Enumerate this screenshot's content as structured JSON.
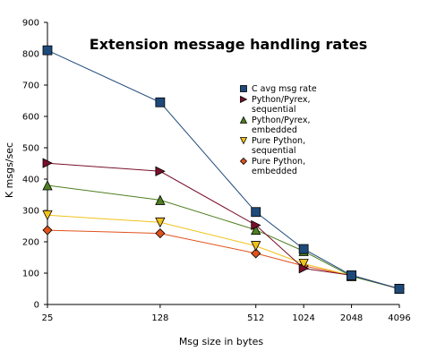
{
  "chart_data": {
    "type": "line",
    "title": "Extension message handling rates",
    "xlabel": "Msg size in bytes",
    "ylabel": "K msgs/sec",
    "categories": [
      "25",
      "128",
      "512",
      "1024",
      "2048",
      "4096"
    ],
    "x_scale": "log",
    "ylim": [
      0,
      900
    ],
    "yticks": [
      0,
      100,
      200,
      300,
      400,
      500,
      600,
      700,
      800,
      900
    ],
    "grid": false,
    "legend_position": "right",
    "series": [
      {
        "name": "C  avg msg rate",
        "values": [
          811,
          645,
          295,
          177,
          93,
          50
        ],
        "color": "#1e4a7a",
        "marker": "square"
      },
      {
        "name": "Python/Pyrex, sequential",
        "legend_lines": [
          "Python/Pyrex,",
          "sequential"
        ],
        "values": [
          451,
          425,
          253,
          115,
          93,
          50
        ],
        "color": "#7a0f2a",
        "marker": "triangle-right"
      },
      {
        "name": "Python/Pyrex, embedded",
        "legend_lines": [
          "Python/Pyrex,",
          "embedded"
        ],
        "values": [
          380,
          333,
          238,
          170,
          90,
          50
        ],
        "color": "#4f7f20",
        "marker": "triangle-up"
      },
      {
        "name": "Pure Python, sequential",
        "legend_lines": [
          "Pure Python,",
          "sequential"
        ],
        "values": [
          285,
          262,
          187,
          130,
          92,
          50
        ],
        "color": "#f2c21a",
        "marker": "triangle-down"
      },
      {
        "name": "Pure Python, embedded",
        "legend_lines": [
          "Pure Python,",
          "embedded"
        ],
        "values": [
          237,
          227,
          163,
          123,
          92,
          50
        ],
        "color": "#e0521c",
        "marker": "diamond"
      }
    ]
  }
}
